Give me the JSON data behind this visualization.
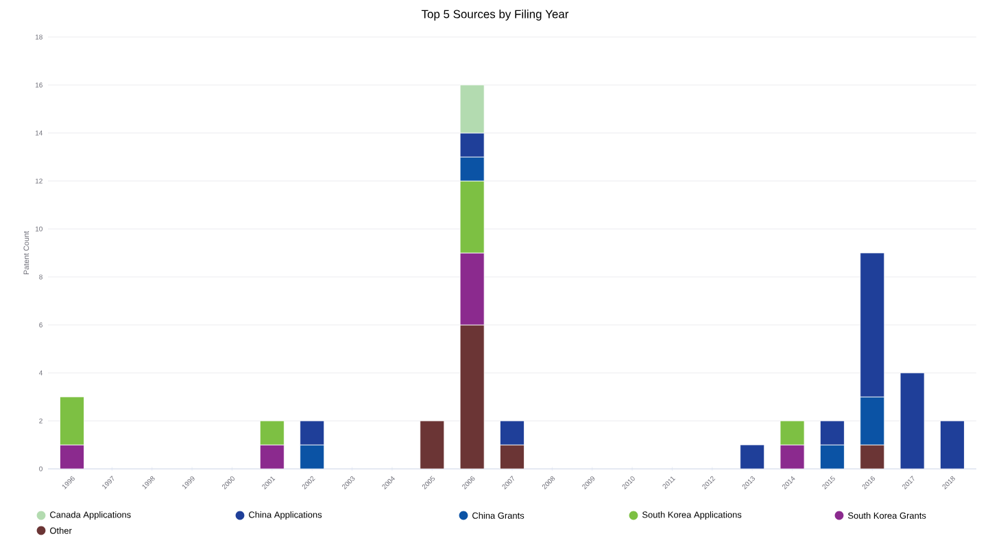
{
  "chart_data": {
    "type": "bar",
    "title": "Top 5 Sources by Filing Year",
    "ylabel": "Patent Count",
    "categories": [
      "1996",
      "1997",
      "1998",
      "1999",
      "2000",
      "2001",
      "2002",
      "2003",
      "2004",
      "2005",
      "2006",
      "2007",
      "2008",
      "2009",
      "2010",
      "2011",
      "2012",
      "2013",
      "2014",
      "2015",
      "2016",
      "2017",
      "2018"
    ],
    "stacked": true,
    "ylim": [
      0,
      18
    ],
    "yticks": [
      0,
      2,
      4,
      6,
      8,
      10,
      12,
      14,
      16,
      18
    ],
    "grid": "y",
    "legend": "bottom",
    "series": [
      {
        "name": "Other",
        "color": "#6b3535",
        "values": [
          null,
          null,
          null,
          null,
          null,
          null,
          null,
          null,
          null,
          2,
          6,
          1,
          null,
          null,
          null,
          null,
          null,
          null,
          null,
          null,
          1,
          null,
          null
        ]
      },
      {
        "name": "South Korea Grants",
        "color": "#8b2a8e",
        "values": [
          1,
          null,
          null,
          null,
          null,
          1,
          null,
          null,
          null,
          null,
          3,
          null,
          null,
          null,
          null,
          null,
          null,
          null,
          1,
          null,
          null,
          null,
          null
        ]
      },
      {
        "name": "South Korea Applications",
        "color": "#7dc043",
        "values": [
          2,
          null,
          null,
          null,
          null,
          1,
          null,
          null,
          null,
          null,
          3,
          null,
          null,
          null,
          null,
          null,
          null,
          null,
          1,
          null,
          null,
          null,
          null
        ]
      },
      {
        "name": "China Grants",
        "color": "#0b53a5",
        "values": [
          null,
          null,
          null,
          null,
          null,
          null,
          1,
          null,
          null,
          null,
          1,
          null,
          null,
          null,
          null,
          null,
          null,
          null,
          null,
          1,
          2,
          null,
          null
        ]
      },
      {
        "name": "China Applications",
        "color": "#1f3f99",
        "values": [
          null,
          null,
          null,
          null,
          null,
          null,
          1,
          null,
          null,
          null,
          1,
          1,
          null,
          null,
          null,
          null,
          null,
          1,
          null,
          1,
          6,
          4,
          2
        ]
      },
      {
        "name": "Canada Applications",
        "color": "#b3dbb0",
        "values": [
          null,
          null,
          null,
          null,
          null,
          null,
          null,
          null,
          null,
          null,
          2,
          null,
          null,
          null,
          null,
          null,
          null,
          null,
          null,
          null,
          null,
          null,
          null
        ]
      }
    ]
  }
}
